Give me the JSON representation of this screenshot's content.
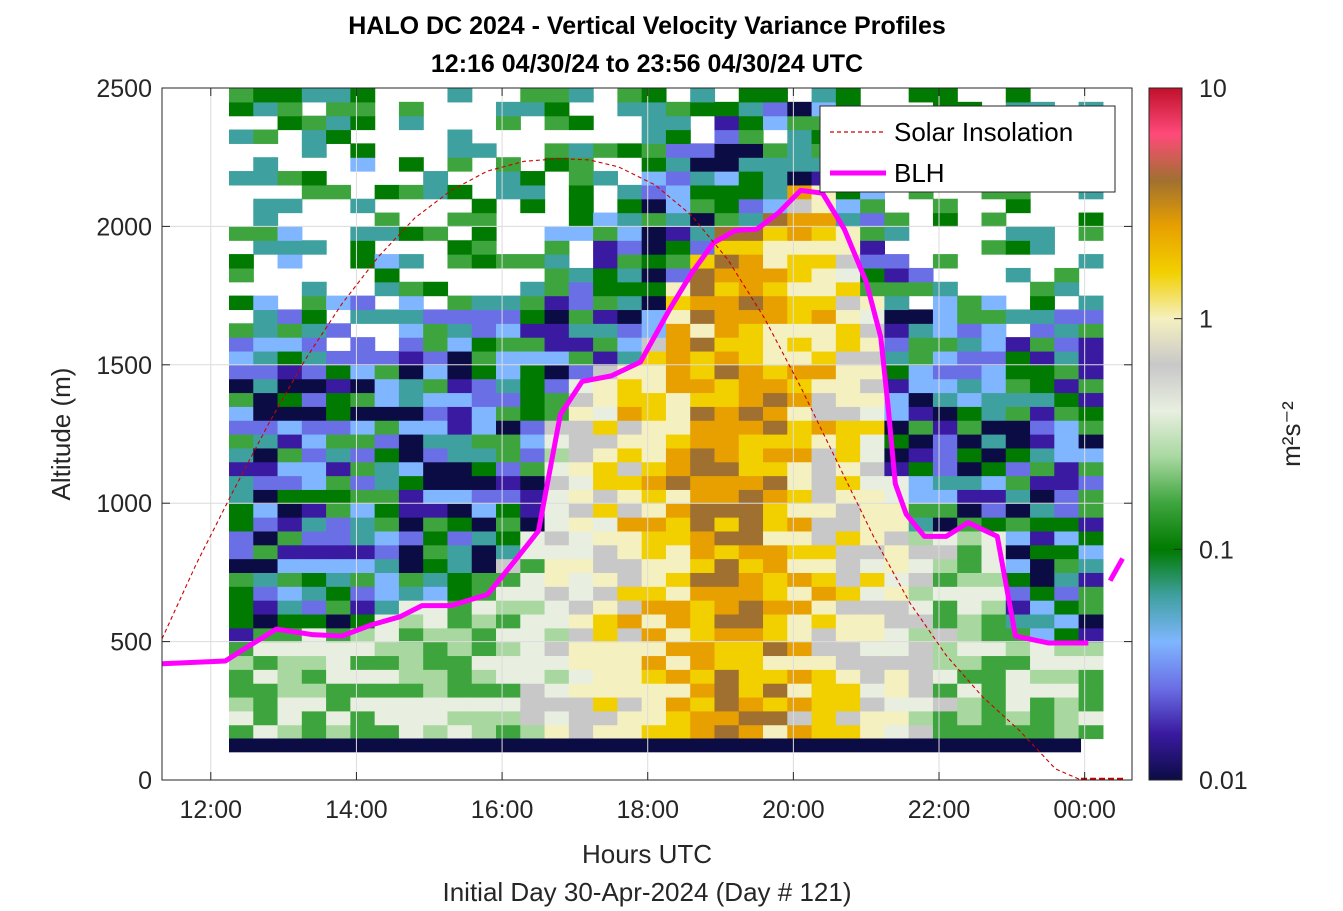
{
  "chart_data": {
    "type": "heatmap",
    "title_line1": "HALO DC 2024 - Vertical Velocity Variance Profiles",
    "title_line2": "12:16 04/30/24 to 23:56 04/30/24  UTC",
    "xlabel": "Hours UTC",
    "xlabel2": "Initial Day 30-Apr-2024 (Day # 121)",
    "ylabel": "Altitude (m)",
    "xlim": [
      11.33,
      24.65
    ],
    "ylim": [
      0,
      2500
    ],
    "x_ticks": [
      12,
      14,
      16,
      18,
      20,
      22,
      24
    ],
    "x_tick_labels": [
      "12:00",
      "14:00",
      "16:00",
      "18:00",
      "20:00",
      "22:00",
      "00:00"
    ],
    "y_ticks": [
      0,
      500,
      1000,
      1500,
      2000,
      2500
    ],
    "y_tick_labels": [
      "0",
      "500",
      "1000",
      "1500",
      "2000",
      "2500"
    ],
    "grid": true,
    "colorbar": {
      "label": "m²s⁻²",
      "scale": "log",
      "range": [
        0.01,
        10
      ],
      "ticks": [
        0.01,
        0.1,
        1,
        10
      ],
      "tick_labels": [
        "0.01",
        "0.1",
        "1",
        "10"
      ],
      "colors": [
        "#0c0c45",
        "#3a1aa0",
        "#6b6fe6",
        "#7fb6ff",
        "#3fa0a0",
        "#007a00",
        "#3ea53e",
        "#a8d8a0",
        "#e8efe0",
        "#c8c8c8",
        "#f5f0c0",
        "#f2d000",
        "#e8a000",
        "#a07030",
        "#ff4a7a",
        "#c0102a"
      ]
    },
    "legend": {
      "placement": "top-right",
      "entries": [
        {
          "label": "Solar Insolation",
          "color": "#cc0000",
          "style": "dashed"
        },
        {
          "label": "BLH",
          "color": "#ff00ff",
          "style": "solid"
        }
      ]
    },
    "series": [
      {
        "name": "BLH",
        "x": [
          11.33,
          12.2,
          12.5,
          12.9,
          13.4,
          13.8,
          14.2,
          14.6,
          14.9,
          15.3,
          15.8,
          16.2,
          16.5,
          16.8,
          17.1,
          17.5,
          17.9,
          18.3,
          18.6,
          18.9,
          19.2,
          19.5,
          19.8,
          20.1,
          20.4,
          20.7,
          21.0,
          21.2,
          21.3,
          21.4,
          21.55,
          21.8,
          22.1,
          22.4,
          22.8,
          23.05,
          23.5,
          24.05
        ],
        "y": [
          420,
          430,
          480,
          545,
          525,
          520,
          560,
          590,
          630,
          630,
          670,
          800,
          900,
          1320,
          1440,
          1460,
          1510,
          1700,
          1830,
          1940,
          1985,
          1990,
          2050,
          2130,
          2120,
          1990,
          1800,
          1600,
          1350,
          1070,
          960,
          880,
          880,
          930,
          880,
          520,
          495,
          495
        ]
      },
      {
        "name": "BLH",
        "x": [
          24.35,
          24.52
        ],
        "y": [
          720,
          800
        ]
      },
      {
        "name": "Solar Insolation",
        "x": [
          11.33,
          11.8,
          12.3,
          12.8,
          13.3,
          13.8,
          14.3,
          14.8,
          15.3,
          15.8,
          16.3,
          16.8,
          17.2,
          17.6,
          18.1,
          18.6,
          19.1,
          19.6,
          20.1,
          20.6,
          21.1,
          21.6,
          22.1,
          22.6,
          23.1,
          23.6,
          23.95
        ],
        "y": [
          510,
          780,
          1040,
          1290,
          1520,
          1720,
          1890,
          2030,
          2130,
          2200,
          2235,
          2245,
          2240,
          2215,
          2150,
          2040,
          1880,
          1670,
          1420,
          1150,
          880,
          640,
          450,
          300,
          180,
          40,
          0
        ]
      }
    ],
    "heatmap_extent": {
      "x": [
        12.25,
        23.95
      ],
      "y": [
        100,
        2500
      ]
    }
  }
}
